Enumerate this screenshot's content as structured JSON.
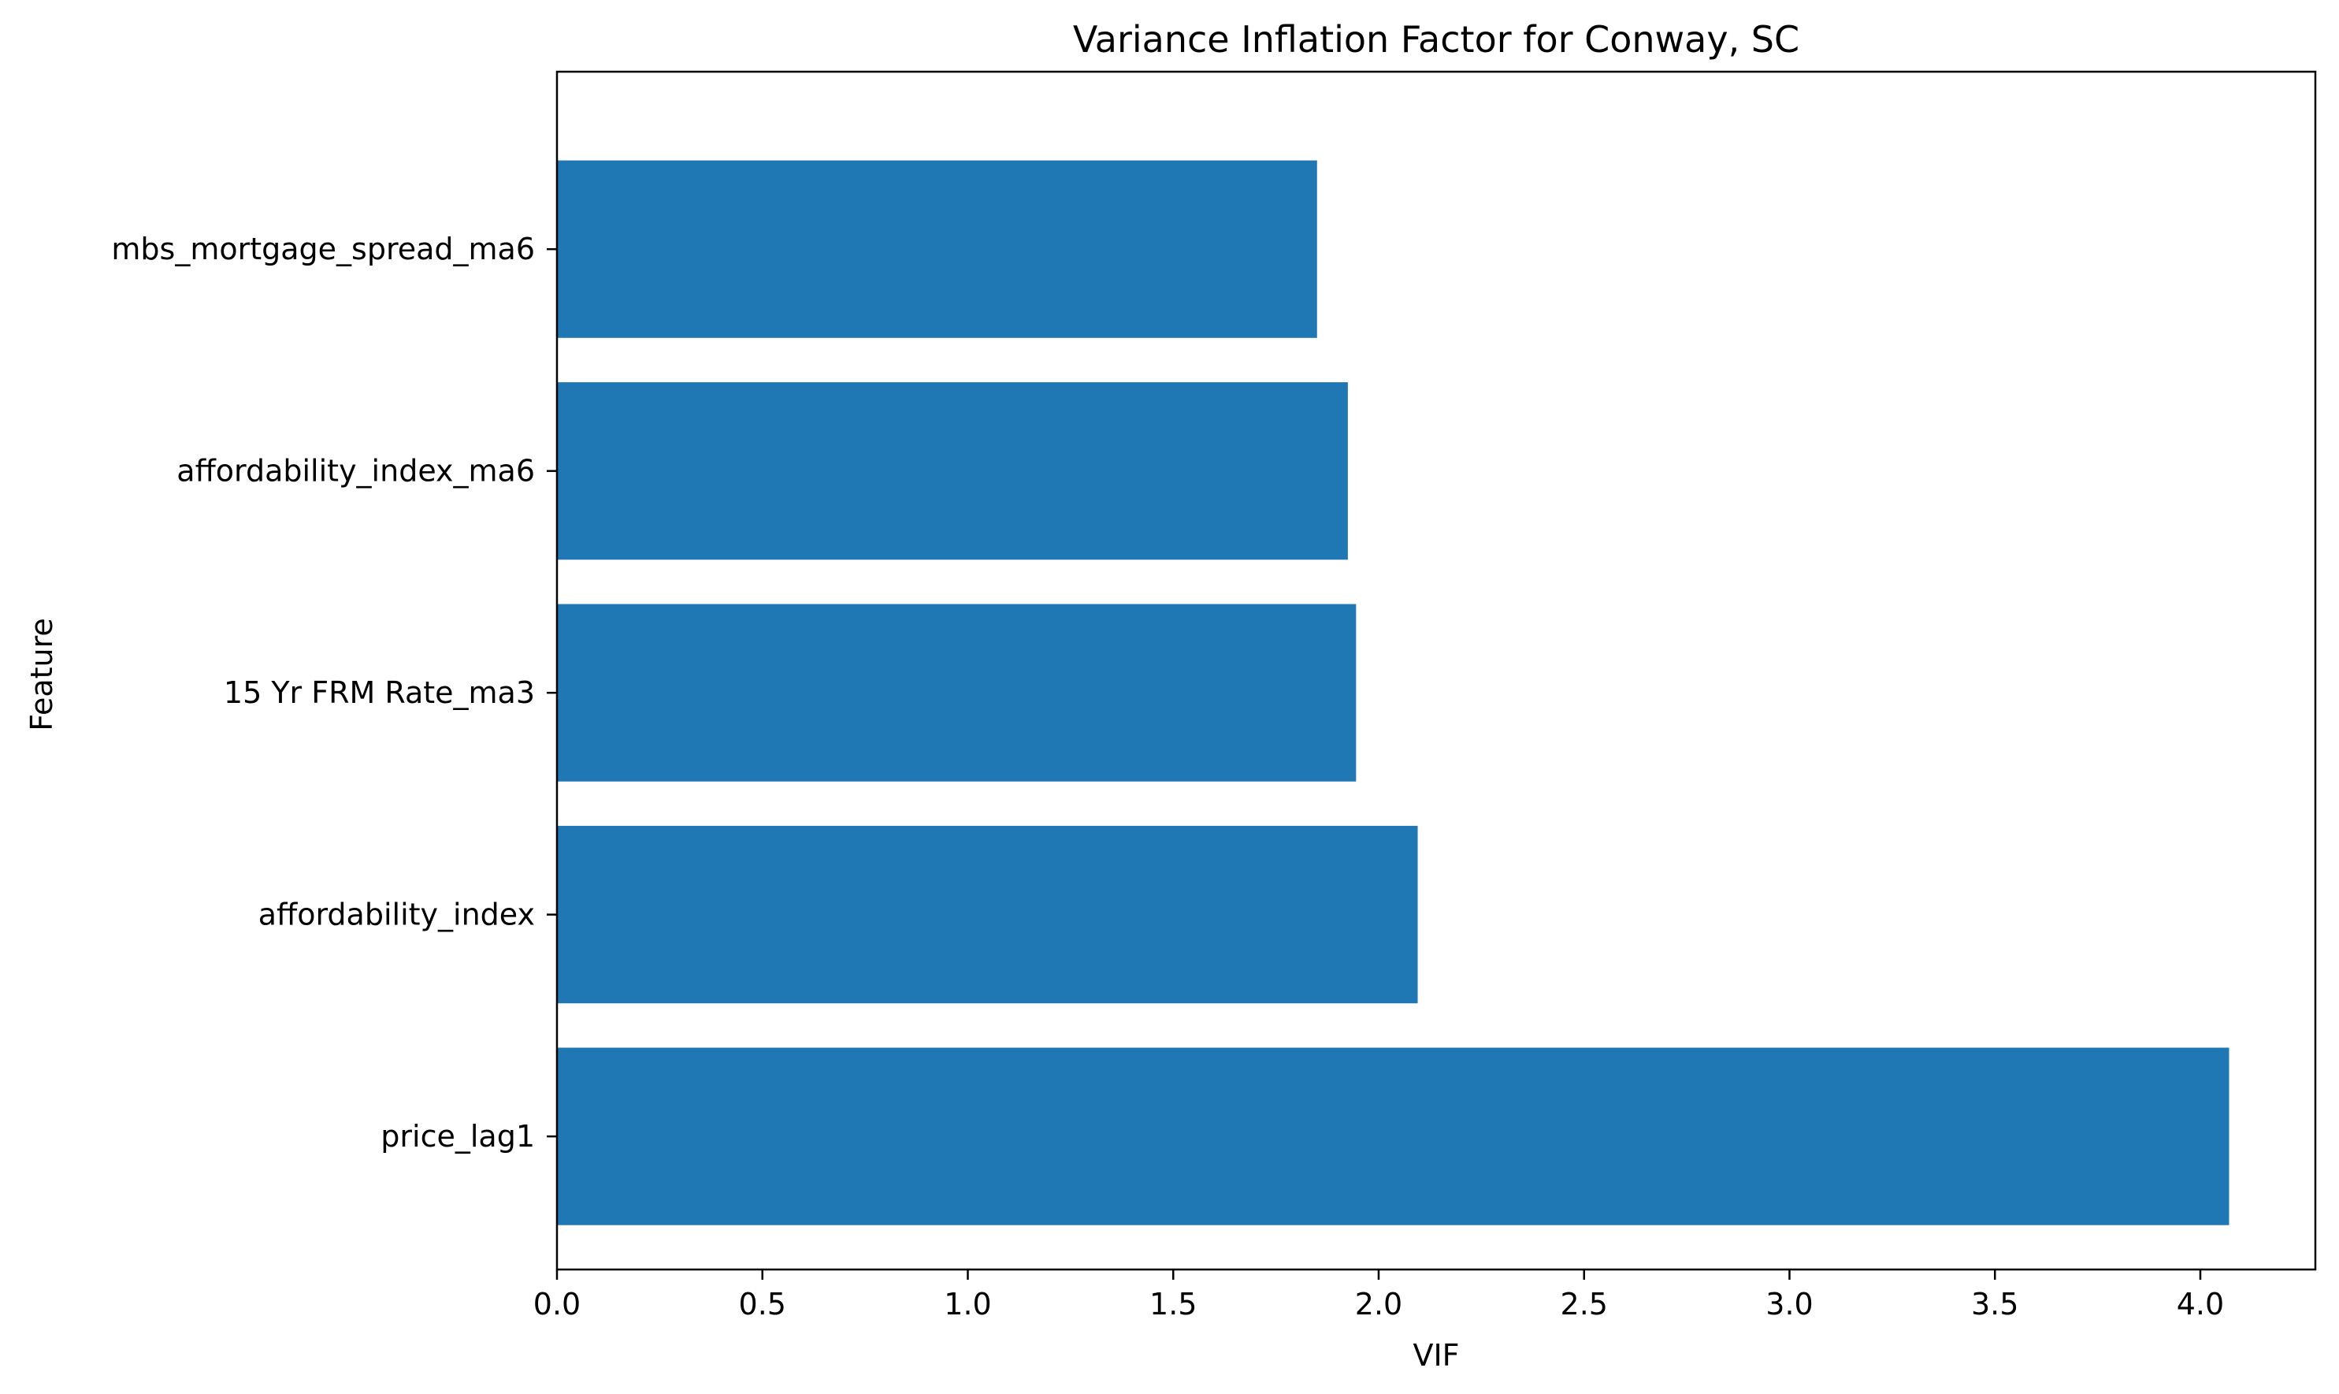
{
  "chart_data": {
    "type": "bar",
    "orientation": "horizontal",
    "title": "Variance Inflation Factor for Conway, SC",
    "xlabel": "VIF",
    "ylabel": "Feature",
    "categories": [
      "price_lag1",
      "affordability_index",
      "15 Yr FRM Rate_ma3",
      "affordability_index_ma6",
      "mbs_mortgage_spread_ma6"
    ],
    "values": [
      4.07,
      2.095,
      1.945,
      1.925,
      1.85
    ],
    "xlim": [
      0,
      4.28
    ],
    "xticks": [
      0.0,
      0.5,
      1.0,
      1.5,
      2.0,
      2.5,
      3.0,
      3.5,
      4.0
    ],
    "xtick_labels": [
      "0.0",
      "0.5",
      "1.0",
      "1.5",
      "2.0",
      "2.5",
      "3.0",
      "3.5",
      "4.0"
    ],
    "bar_color": "#1f77b4",
    "grid": false,
    "legend": null
  }
}
